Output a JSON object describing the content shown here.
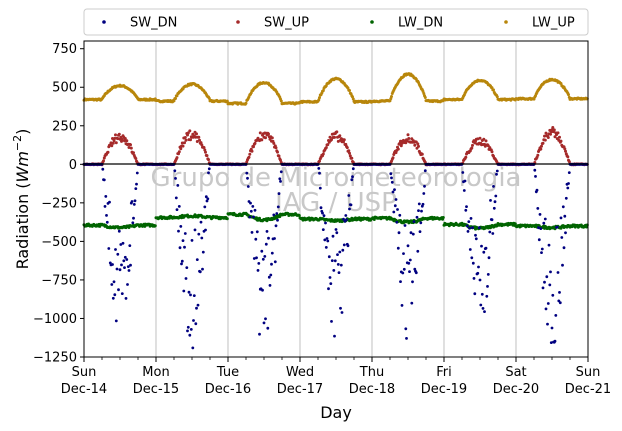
{
  "chart_data": {
    "type": "scatter",
    "title": "",
    "xlabel": "Day",
    "ylabel_prefix": "Radiation (",
    "ylabel_math": "Wm",
    "ylabel_exp": "−2",
    "ylabel_suffix": ")",
    "ylim": [
      -1250,
      800
    ],
    "yticks": [
      750,
      500,
      250,
      0,
      -250,
      -500,
      -750,
      -1000,
      -1250
    ],
    "ytick_labels": [
      "750",
      "500",
      "250",
      "0",
      "−250",
      "−500",
      "−750",
      "−1000",
      "−1250"
    ],
    "xlim": [
      "2014-12-14",
      "2014-12-21"
    ],
    "xticks": [
      {
        "day": "Sun",
        "date": "Dec-14"
      },
      {
        "day": "Mon",
        "date": "Dec-15"
      },
      {
        "day": "Tue",
        "date": "Dec-16"
      },
      {
        "day": "Wed",
        "date": "Dec-17"
      },
      {
        "day": "Thu",
        "date": "Dec-18"
      },
      {
        "day": "Fri",
        "date": "Dec-19"
      },
      {
        "day": "Sat",
        "date": "Dec-20"
      },
      {
        "day": "Sun",
        "date": "Dec-21"
      }
    ],
    "grid": "vertical",
    "legend_position": "top",
    "zero_line": true,
    "watermark": [
      "Grupo de Micrometeorologia",
      "IAG / USP"
    ],
    "series": [
      {
        "name": "SW_DN",
        "color": "#000080",
        "daily_peak_magnitude": [
          1080,
          1200,
          1200,
          1130,
          1140,
          1070,
          1210
        ]
      },
      {
        "name": "SW_UP",
        "color": "#a52a2a",
        "daily_peak": [
          200,
          215,
          215,
          200,
          190,
          170,
          230
        ]
      },
      {
        "name": "LW_DN",
        "color": "#006400",
        "night_level": [
          -395,
          -345,
          -325,
          -355,
          -350,
          -390,
          -400
        ],
        "day_level": [
          -410,
          -335,
          -360,
          -365,
          -375,
          -415,
          -410
        ]
      },
      {
        "name": "LW_UP",
        "color": "#b8860b",
        "night_level": [
          420,
          410,
          395,
          405,
          410,
          420,
          425
        ],
        "daily_peak": [
          510,
          520,
          530,
          555,
          585,
          545,
          550
        ]
      }
    ]
  }
}
